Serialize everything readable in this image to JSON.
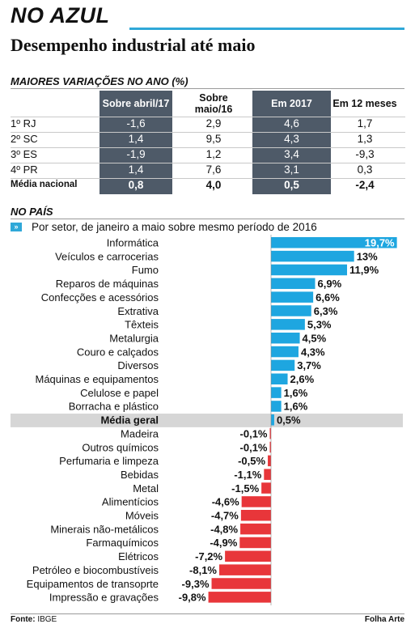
{
  "headline": "NO AZUL",
  "subtitle": "Desempenho industrial até maio",
  "table_section_title": "MAIORES VARIAÇÕES NO ANO (%)",
  "table": {
    "headers": [
      "Sobre abril/17",
      "Sobre maio/16",
      "Em 2017",
      "Em 12 meses"
    ],
    "rows": [
      {
        "label": "1º RJ",
        "values": [
          "-1,6",
          "2,9",
          "4,6",
          "1,7"
        ]
      },
      {
        "label": "2º SC",
        "values": [
          "1,4",
          "9,5",
          "4,3",
          "1,3"
        ]
      },
      {
        "label": "3º ES",
        "values": [
          "-1,9",
          "1,2",
          "3,4",
          "-9,3"
        ]
      },
      {
        "label": "4º PR",
        "values": [
          "1,4",
          "7,6",
          "3,1",
          "0,3"
        ]
      },
      {
        "label": "Média nacional",
        "values": [
          "0,8",
          "4,0",
          "0,5",
          "-2,4"
        ]
      }
    ]
  },
  "chart_section_title": "NO PAÍS",
  "chart_subtitle": "Por setor, de janeiro a maio sobre mesmo período de 2016",
  "source_label": "Fonte:",
  "source_value": "IBGE",
  "credit": "Folha Arte",
  "colors": {
    "positive": "#1ea6e0",
    "negative": "#e8363a",
    "highlight_row": "#d6d6d6",
    "table_dark": "#4e5a68",
    "accent": "#2fa8d8"
  },
  "chart_data": {
    "type": "bar",
    "orientation": "horizontal",
    "title": "Por setor, de janeiro a maio sobre mesmo período de 2016",
    "categories": [
      "Informática",
      "Veículos e carrocerias",
      "Fumo",
      "Reparos de máquinas",
      "Confecções e acessórios",
      "Extrativa",
      "Têxteis",
      "Metalurgia",
      "Couro e calçados",
      "Diversos",
      "Máquinas e equipamentos",
      "Celulose e papel",
      "Borracha e plástico",
      "Média geral",
      "Madeira",
      "Outros químicos",
      "Perfumaria e limpeza",
      "Bebidas",
      "Metal",
      "Alimentícios",
      "Móveis",
      "Minerais não-metálicos",
      "Farmaquímicos",
      "Elétricos",
      "Petróleo e biocombustíveis",
      "Equipamentos de transoprte",
      "Impressão e gravações"
    ],
    "values": [
      19.7,
      13,
      11.9,
      6.9,
      6.6,
      6.3,
      5.3,
      4.5,
      4.3,
      3.7,
      2.6,
      1.6,
      1.6,
      0.5,
      -0.1,
      -0.1,
      -0.5,
      -1.1,
      -1.5,
      -4.6,
      -4.7,
      -4.8,
      -4.9,
      -7.2,
      -8.1,
      -9.3,
      -9.8
    ],
    "value_labels": [
      "19,7%",
      "13%",
      "11,9%",
      "6,9%",
      "6,6%",
      "6,3%",
      "5,3%",
      "4,5%",
      "4,3%",
      "3,7%",
      "2,6%",
      "1,6%",
      "1,6%",
      "0,5%",
      "-0,1%",
      "-0,1%",
      "-0,5%",
      "-1,1%",
      "-1,5%",
      "-4,6%",
      "-4,7%",
      "-4,8%",
      "-4,9%",
      "-7,2%",
      "-8,1%",
      "-9,3%",
      "-9,8%"
    ],
    "highlight": "Média geral",
    "xlim": [
      -9.8,
      19.7
    ]
  }
}
